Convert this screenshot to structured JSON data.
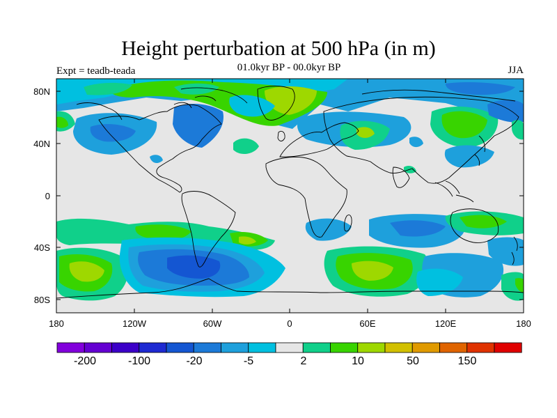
{
  "title": "Height perturbation at 500 hPa (in m)",
  "subtitle": "01.0kyr BP - 00.0kyr BP",
  "left_label": "Expt = teadb-teada",
  "right_label": "JJA",
  "map": {
    "background": "#e6e6e6",
    "lon_ticks": [
      "180",
      "120W",
      "60W",
      "0",
      "60E",
      "120E",
      "180"
    ],
    "lat_ticks": [
      "80N",
      "40N",
      "0",
      "40S",
      "80S"
    ]
  },
  "colorbar": {
    "colors": [
      "#8200dc",
      "#6400d2",
      "#3c00c8",
      "#1e2ad2",
      "#1456d2",
      "#1c7ad8",
      "#1ea0dc",
      "#00c0e0",
      "#e6e6e6",
      "#10d08a",
      "#38d400",
      "#9ed800",
      "#d2c000",
      "#e09a00",
      "#e06400",
      "#e03200",
      "#e00000"
    ],
    "labels": [
      "-200",
      "-100",
      "-20",
      "-5",
      "2",
      "10",
      "50",
      "150"
    ]
  }
}
